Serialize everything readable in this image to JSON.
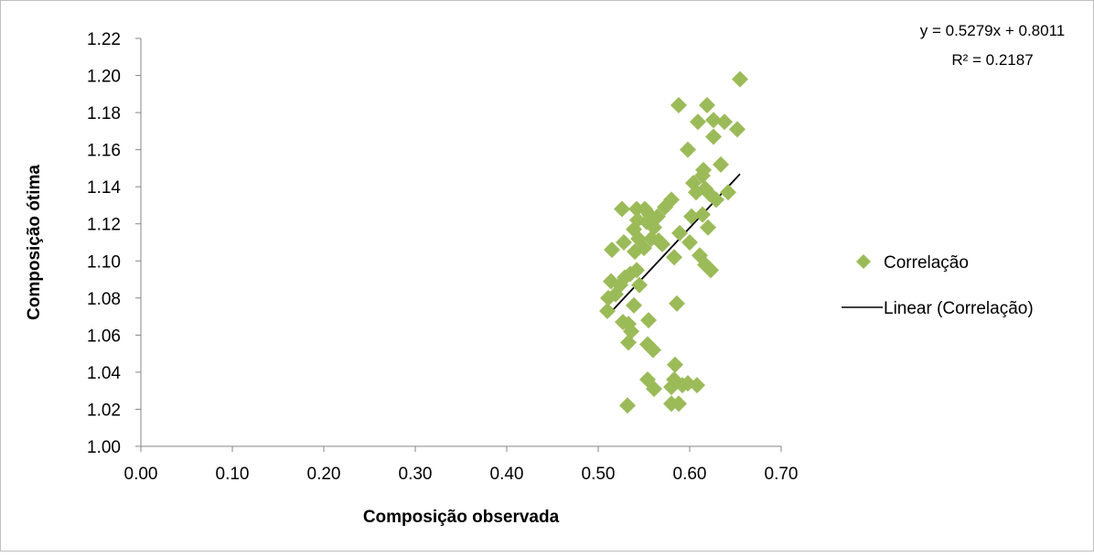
{
  "chart_data": {
    "type": "scatter",
    "title": "",
    "xlabel": "Composição observada",
    "ylabel": "Composição ótima",
    "xlim": [
      0.0,
      0.7
    ],
    "ylim": [
      1.0,
      1.22
    ],
    "x_ticks": [
      "0.00",
      "0.10",
      "0.20",
      "0.30",
      "0.40",
      "0.50",
      "0.60",
      "0.70"
    ],
    "y_ticks": [
      "1.00",
      "1.02",
      "1.04",
      "1.06",
      "1.08",
      "1.10",
      "1.12",
      "1.14",
      "1.16",
      "1.18",
      "1.20",
      "1.22"
    ],
    "grid": false,
    "legend_position": "right",
    "series": [
      {
        "name": "Correlação",
        "marker": "diamond",
        "color": "#9bbb59",
        "points": [
          [
            0.655,
            1.198
          ],
          [
            0.588,
            1.184
          ],
          [
            0.619,
            1.184
          ],
          [
            0.609,
            1.175
          ],
          [
            0.626,
            1.176
          ],
          [
            0.638,
            1.175
          ],
          [
            0.652,
            1.171
          ],
          [
            0.626,
            1.167
          ],
          [
            0.598,
            1.16
          ],
          [
            0.634,
            1.152
          ],
          [
            0.615,
            1.149
          ],
          [
            0.614,
            1.146
          ],
          [
            0.604,
            1.142
          ],
          [
            0.607,
            1.137
          ],
          [
            0.617,
            1.139
          ],
          [
            0.622,
            1.136
          ],
          [
            0.642,
            1.137
          ],
          [
            0.58,
            1.133
          ],
          [
            0.629,
            1.133
          ],
          [
            0.573,
            1.129
          ],
          [
            0.526,
            1.128
          ],
          [
            0.542,
            1.128
          ],
          [
            0.551,
            1.128
          ],
          [
            0.556,
            1.125
          ],
          [
            0.565,
            1.124
          ],
          [
            0.602,
            1.124
          ],
          [
            0.614,
            1.125
          ],
          [
            0.543,
            1.122
          ],
          [
            0.553,
            1.121
          ],
          [
            0.561,
            1.118
          ],
          [
            0.539,
            1.117
          ],
          [
            0.62,
            1.118
          ],
          [
            0.589,
            1.115
          ],
          [
            0.544,
            1.112
          ],
          [
            0.558,
            1.112
          ],
          [
            0.566,
            1.111
          ],
          [
            0.528,
            1.11
          ],
          [
            0.57,
            1.109
          ],
          [
            0.6,
            1.11
          ],
          [
            0.515,
            1.106
          ],
          [
            0.55,
            1.107
          ],
          [
            0.54,
            1.105
          ],
          [
            0.611,
            1.103
          ],
          [
            0.583,
            1.102
          ],
          [
            0.617,
            1.098
          ],
          [
            0.623,
            1.095
          ],
          [
            0.542,
            1.095
          ],
          [
            0.535,
            1.093
          ],
          [
            0.529,
            1.091
          ],
          [
            0.514,
            1.089
          ],
          [
            0.524,
            1.087
          ],
          [
            0.545,
            1.087
          ],
          [
            0.519,
            1.082
          ],
          [
            0.511,
            1.08
          ],
          [
            0.586,
            1.077
          ],
          [
            0.539,
            1.076
          ],
          [
            0.51,
            1.073
          ],
          [
            0.533,
            1.066
          ],
          [
            0.527,
            1.067
          ],
          [
            0.555,
            1.068
          ],
          [
            0.536,
            1.062
          ],
          [
            0.533,
            1.056
          ],
          [
            0.554,
            1.055
          ],
          [
            0.56,
            1.052
          ],
          [
            0.584,
            1.044
          ],
          [
            0.554,
            1.036
          ],
          [
            0.583,
            1.036
          ],
          [
            0.598,
            1.034
          ],
          [
            0.608,
            1.033
          ],
          [
            0.58,
            1.032
          ],
          [
            0.592,
            1.033
          ],
          [
            0.561,
            1.031
          ],
          [
            0.532,
            1.022
          ],
          [
            0.58,
            1.023
          ],
          [
            0.588,
            1.023
          ]
        ]
      },
      {
        "name": "Linear (Correlação)",
        "type": "line",
        "color": "#000000",
        "slope": 0.5279,
        "intercept": 0.8011,
        "x_range": [
          0.51,
          0.655
        ]
      }
    ],
    "annotations": {
      "equation": "y = 0.5279x + 0.8011",
      "r_squared": "R² = 0.2187"
    }
  }
}
